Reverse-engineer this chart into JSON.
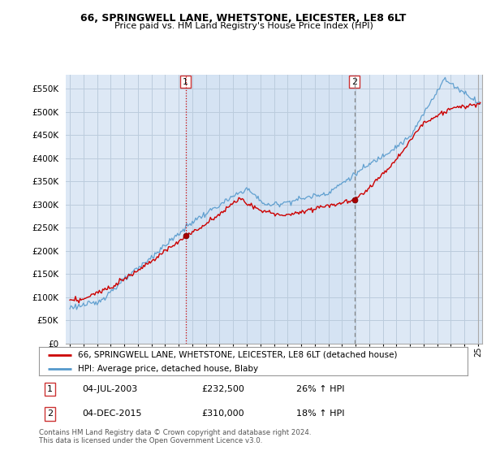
{
  "title1": "66, SPRINGWELL LANE, WHETSTONE, LEICESTER, LE8 6LT",
  "title2": "Price paid vs. HM Land Registry's House Price Index (HPI)",
  "legend_line1": "66, SPRINGWELL LANE, WHETSTONE, LEICESTER, LE8 6LT (detached house)",
  "legend_line2": "HPI: Average price, detached house, Blaby",
  "annotation1_label": "1",
  "annotation1_date": "04-JUL-2003",
  "annotation1_price": "£232,500",
  "annotation1_hpi": "26% ↑ HPI",
  "annotation2_label": "2",
  "annotation2_date": "04-DEC-2015",
  "annotation2_price": "£310,000",
  "annotation2_hpi": "18% ↑ HPI",
  "footnote": "Contains HM Land Registry data © Crown copyright and database right 2024.\nThis data is licensed under the Open Government Licence v3.0.",
  "sale1_year": 2003.5,
  "sale1_value": 232500,
  "sale2_year": 2015.92,
  "sale2_value": 310000,
  "red_line_color": "#cc0000",
  "blue_line_color": "#5599cc",
  "vline1_color": "#cc0000",
  "vline2_color": "#888888",
  "plot_bg_color": "#dde8f5",
  "background_color": "#ffffff",
  "grid_color": "#bbccdd",
  "ylim": [
    0,
    580000
  ],
  "xlim_start": 1994.7,
  "xlim_end": 2025.3
}
